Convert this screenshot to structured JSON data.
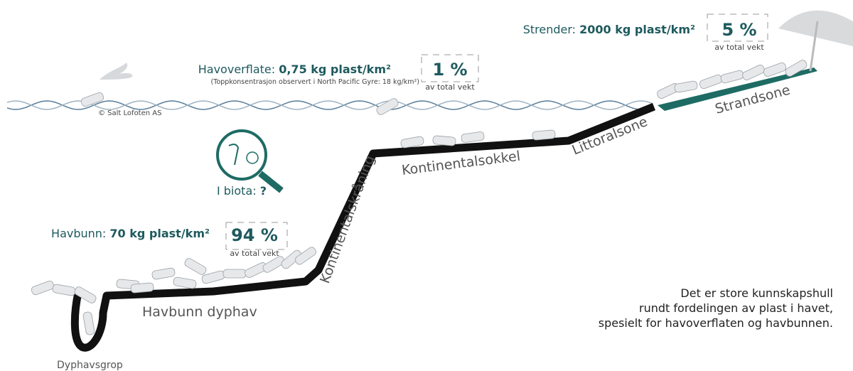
{
  "strender": {
    "label": "Strender:",
    "value": "2000 kg plast/km²",
    "percent": "5 %",
    "percent_label": "av total vekt"
  },
  "havoverflate": {
    "label": "Havoverflate:",
    "value": "0,75 kg plast/km²",
    "note": "(Toppkonsentrasjon observert i North Pacific Gyre: 18 kg/km²)",
    "percent": "1 %",
    "percent_label": "av total vekt"
  },
  "havbunn": {
    "label": "Havbunn:",
    "value": "70 kg plast/km²",
    "percent": "94 %",
    "percent_label": "av total vekt"
  },
  "biota": {
    "label": "I biota:",
    "value": "?"
  },
  "zones": [
    "Strandsone",
    "Littoralsone",
    "Kontinentalsokkel",
    "Kontinentalskråning",
    "Havbunn dyphav",
    "Dyphavsgrop"
  ],
  "credit": "© Salt Lofoten AS",
  "conclusion": [
    "Det er store kunnskapshull",
    "rundt fordelingen av plast i havet,",
    "spesielt for havoverflaten og havbunnen."
  ]
}
